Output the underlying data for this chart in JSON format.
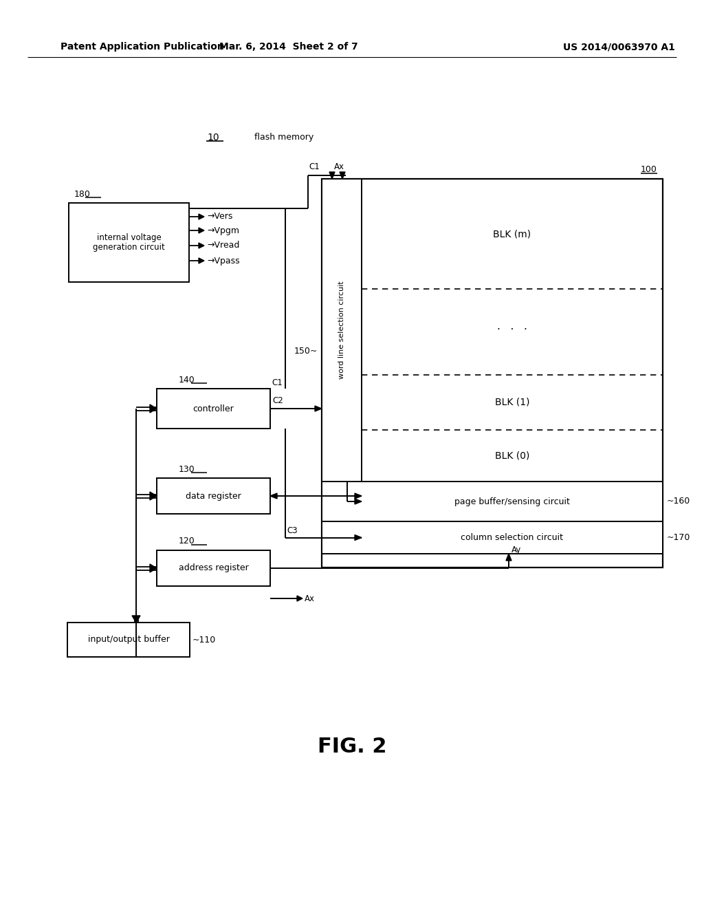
{
  "bg_color": "#ffffff",
  "header_left": "Patent Application Publication",
  "header_mid": "Mar. 6, 2014  Sheet 2 of 7",
  "header_right": "US 2014/0063970 A1",
  "label_10": "10",
  "label_10_text": "flash memory",
  "label_100": "100",
  "label_180": "180",
  "label_150": "150~",
  "label_140": "140",
  "label_130": "130",
  "label_120": "120",
  "label_110": "~110",
  "label_160": "~160",
  "label_170": "~170",
  "box_iv_label": "internal voltage\ngeneration circuit",
  "box_ctrl_label": "controller",
  "box_dr_label": "data register",
  "box_ar_label": "address register",
  "box_io_label": "input/output buffer",
  "box_wls_label": "word line selection circuit",
  "box_pbs_label": "page buffer/sensing circuit",
  "box_csc_label": "column selection circuit",
  "blk_m": "BLK (m)",
  "blk_1": "BLK (1)",
  "blk_0": "BLK (0)",
  "signals_iv": [
    "Vers",
    "Vpgm",
    "Vread",
    "Vpass"
  ],
  "label_C1a": "C1",
  "label_C1b": "C1",
  "label_C2": "C2",
  "label_C3": "C3",
  "label_Ax_top": "Ax",
  "label_Ax_bot": "Ax",
  "label_Ay": "Ay",
  "fig_label": "FIG. 2",
  "dots": "· · ·"
}
